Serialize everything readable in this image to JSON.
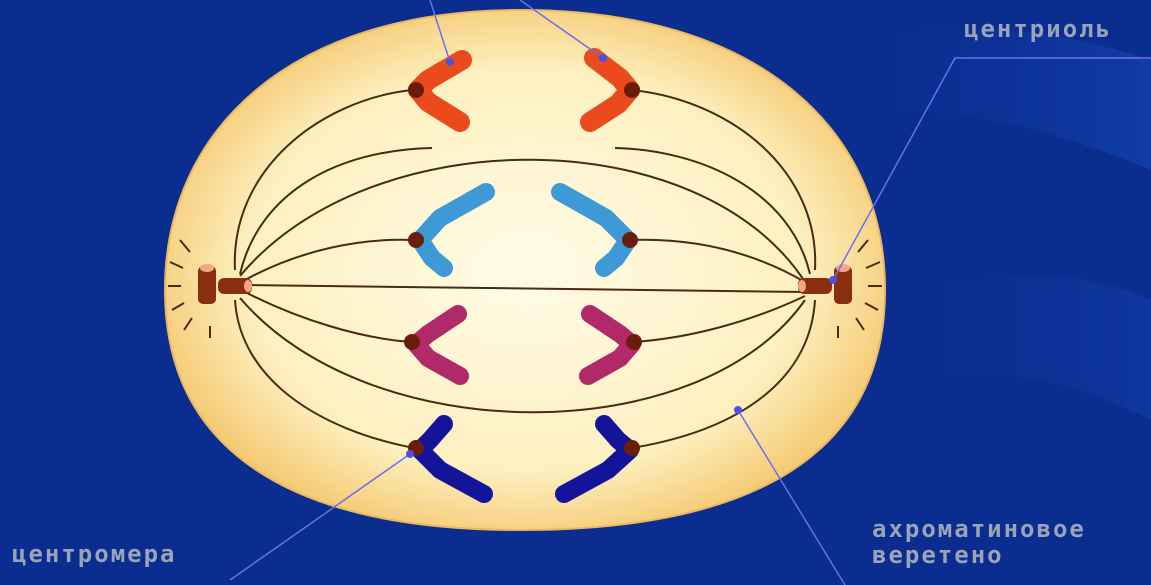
{
  "labels": {
    "centriole": "центриоль",
    "centromere": "центромера",
    "spindle_line1": "ахроматиновое",
    "spindle_line2": "веретено"
  },
  "colors": {
    "background": "#0a2d8f",
    "cell_fill": "#fdf3c4",
    "cell_edge": "#f2c770",
    "spindle_fiber": "#4a2a14",
    "centromere": "#6b1d0c",
    "centriole": "#8a2f0d",
    "pointer_line": "#6a6ff0",
    "chromosome_1": "#ea4a1c",
    "chromosome_2": "#3d9ad6",
    "chromosome_3": "#b02a6a",
    "chromosome_4": "#14149a"
  }
}
